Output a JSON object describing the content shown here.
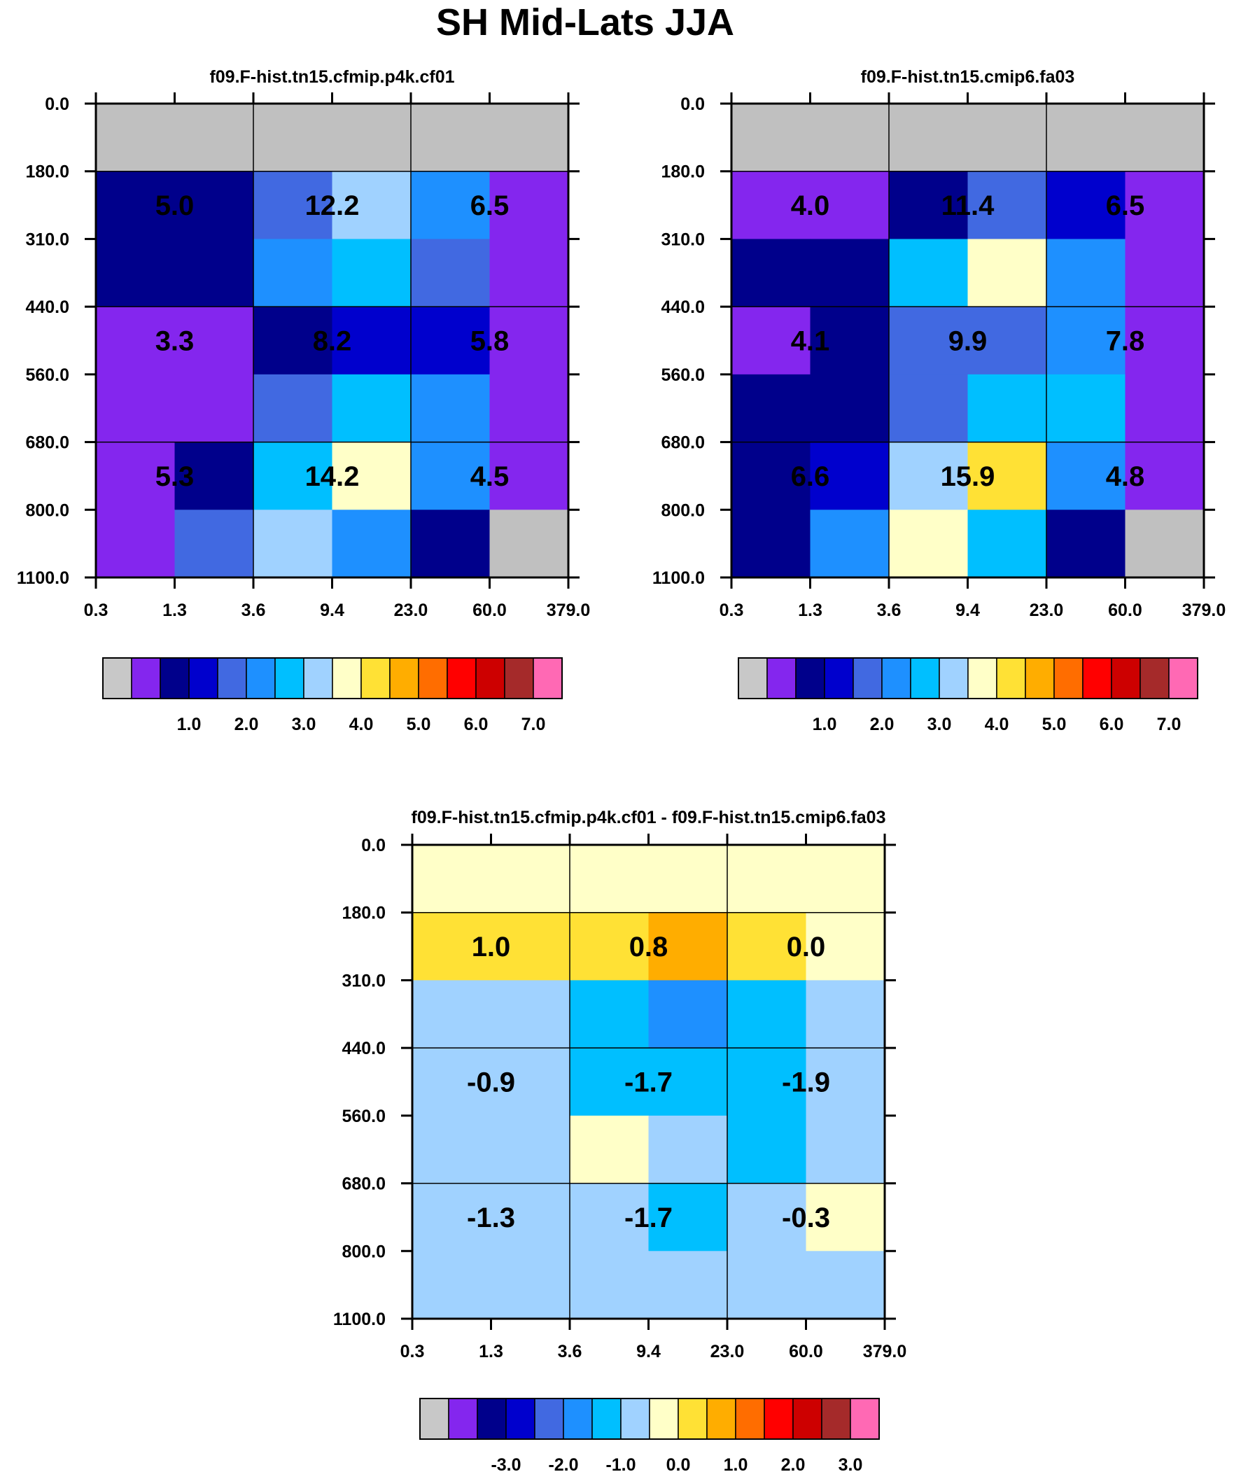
{
  "title": "SH Mid-Lats JJA",
  "chart_data": [
    {
      "type": "heatmap",
      "title": "f09.F-hist.tn15.cfmip.p4k.cf01",
      "x_ticks": [
        "0.3",
        "1.3",
        "3.6",
        "9.4",
        "23.0",
        "60.0",
        "379.0"
      ],
      "y_ticks": [
        "0.0",
        "180.0",
        "310.0",
        "440.0",
        "560.0",
        "680.0",
        "800.0",
        "1100.0"
      ],
      "xlabel": "",
      "ylabel": "",
      "cell_colors": [
        [
          "#c0c0c0",
          "#c0c0c0",
          "#c0c0c0",
          "#c0c0c0",
          "#c0c0c0",
          "#c0c0c0"
        ],
        [
          "#00008b",
          "#00008b",
          "#4169e1",
          "#a0d2ff",
          "#1e90ff",
          "#8426ee"
        ],
        [
          "#00008b",
          "#00008b",
          "#1e90ff",
          "#00bfff",
          "#4169e1",
          "#8426ee"
        ],
        [
          "#8426ee",
          "#8426ee",
          "#00008b",
          "#0000cd",
          "#0000cd",
          "#8426ee"
        ],
        [
          "#8426ee",
          "#8426ee",
          "#4169e1",
          "#00bfff",
          "#1e90ff",
          "#8426ee"
        ],
        [
          "#8426ee",
          "#00008b",
          "#00bfff",
          "#ffffc8",
          "#1e90ff",
          "#8426ee"
        ],
        [
          "#8426ee",
          "#4169e1",
          "#a0d2ff",
          "#1e90ff",
          "#00008b",
          "#c0c0c0"
        ]
      ],
      "group_values": [
        [
          "5.0",
          "12.2",
          "6.5"
        ],
        [
          "3.3",
          "8.2",
          "5.8"
        ],
        [
          "5.3",
          "14.2",
          "4.5"
        ]
      ],
      "colorbar": {
        "colors": [
          "#c8c8c8",
          "#8426ee",
          "#00008b",
          "#0000cd",
          "#4169e1",
          "#1e90ff",
          "#00bfff",
          "#a0d2ff",
          "#ffffc8",
          "#ffe135",
          "#ffad00",
          "#ff6d00",
          "#ff0000",
          "#cd0000",
          "#a52a2a",
          "#ff69b4"
        ],
        "labels": [
          "1.0",
          "2.0",
          "3.0",
          "4.0",
          "5.0",
          "6.0",
          "7.0"
        ]
      }
    },
    {
      "type": "heatmap",
      "title": "f09.F-hist.tn15.cmip6.fa03",
      "x_ticks": [
        "0.3",
        "1.3",
        "3.6",
        "9.4",
        "23.0",
        "60.0",
        "379.0"
      ],
      "y_ticks": [
        "0.0",
        "180.0",
        "310.0",
        "440.0",
        "560.0",
        "680.0",
        "800.0",
        "1100.0"
      ],
      "xlabel": "",
      "ylabel": "",
      "cell_colors": [
        [
          "#c0c0c0",
          "#c0c0c0",
          "#c0c0c0",
          "#c0c0c0",
          "#c0c0c0",
          "#c0c0c0"
        ],
        [
          "#8426ee",
          "#8426ee",
          "#00008b",
          "#4169e1",
          "#0000cd",
          "#8426ee"
        ],
        [
          "#00008b",
          "#00008b",
          "#00bfff",
          "#ffffc8",
          "#1e90ff",
          "#8426ee"
        ],
        [
          "#8426ee",
          "#00008b",
          "#4169e1",
          "#4169e1",
          "#1e90ff",
          "#8426ee"
        ],
        [
          "#00008b",
          "#00008b",
          "#4169e1",
          "#00bfff",
          "#00bfff",
          "#8426ee"
        ],
        [
          "#00008b",
          "#0000cd",
          "#a0d2ff",
          "#ffe135",
          "#1e90ff",
          "#8426ee"
        ],
        [
          "#00008b",
          "#1e90ff",
          "#ffffc8",
          "#00bfff",
          "#00008b",
          "#c0c0c0"
        ]
      ],
      "group_values": [
        [
          "4.0",
          "11.4",
          "6.5"
        ],
        [
          "4.1",
          "9.9",
          "7.8"
        ],
        [
          "6.6",
          "15.9",
          "4.8"
        ]
      ],
      "colorbar": {
        "colors": [
          "#c8c8c8",
          "#8426ee",
          "#00008b",
          "#0000cd",
          "#4169e1",
          "#1e90ff",
          "#00bfff",
          "#a0d2ff",
          "#ffffc8",
          "#ffe135",
          "#ffad00",
          "#ff6d00",
          "#ff0000",
          "#cd0000",
          "#a52a2a",
          "#ff69b4"
        ],
        "labels": [
          "1.0",
          "2.0",
          "3.0",
          "4.0",
          "5.0",
          "6.0",
          "7.0"
        ]
      }
    },
    {
      "type": "heatmap",
      "title": "f09.F-hist.tn15.cfmip.p4k.cf01 - f09.F-hist.tn15.cmip6.fa03",
      "x_ticks": [
        "0.3",
        "1.3",
        "3.6",
        "9.4",
        "23.0",
        "60.0",
        "379.0"
      ],
      "y_ticks": [
        "0.0",
        "180.0",
        "310.0",
        "440.0",
        "560.0",
        "680.0",
        "800.0",
        "1100.0"
      ],
      "xlabel": "",
      "ylabel": "",
      "cell_colors": [
        [
          "#ffffc8",
          "#ffffc8",
          "#ffffc8",
          "#ffffc8",
          "#ffffc8",
          "#ffffc8"
        ],
        [
          "#ffe135",
          "#ffe135",
          "#ffe135",
          "#ffad00",
          "#ffe135",
          "#ffffc8"
        ],
        [
          "#a0d2ff",
          "#a0d2ff",
          "#00bfff",
          "#1e90ff",
          "#00bfff",
          "#a0d2ff"
        ],
        [
          "#a0d2ff",
          "#a0d2ff",
          "#00bfff",
          "#00bfff",
          "#00bfff",
          "#a0d2ff"
        ],
        [
          "#a0d2ff",
          "#a0d2ff",
          "#ffffc8",
          "#a0d2ff",
          "#00bfff",
          "#a0d2ff"
        ],
        [
          "#a0d2ff",
          "#a0d2ff",
          "#a0d2ff",
          "#00bfff",
          "#a0d2ff",
          "#ffffc8"
        ],
        [
          "#a0d2ff",
          "#a0d2ff",
          "#a0d2ff",
          "#a0d2ff",
          "#a0d2ff",
          "#a0d2ff"
        ]
      ],
      "group_values": [
        [
          "1.0",
          "0.8",
          "0.0"
        ],
        [
          "-0.9",
          "-1.7",
          "-1.9"
        ],
        [
          "-1.3",
          "-1.7",
          "-0.3"
        ]
      ],
      "colorbar": {
        "colors": [
          "#c8c8c8",
          "#8426ee",
          "#00008b",
          "#0000cd",
          "#4169e1",
          "#1e90ff",
          "#00bfff",
          "#a0d2ff",
          "#ffffc8",
          "#ffe135",
          "#ffad00",
          "#ff6d00",
          "#ff0000",
          "#cd0000",
          "#a52a2a",
          "#ff69b4"
        ],
        "labels": [
          "-3.0",
          "-2.0",
          "-1.0",
          "0.0",
          "1.0",
          "2.0",
          "3.0"
        ]
      }
    }
  ]
}
